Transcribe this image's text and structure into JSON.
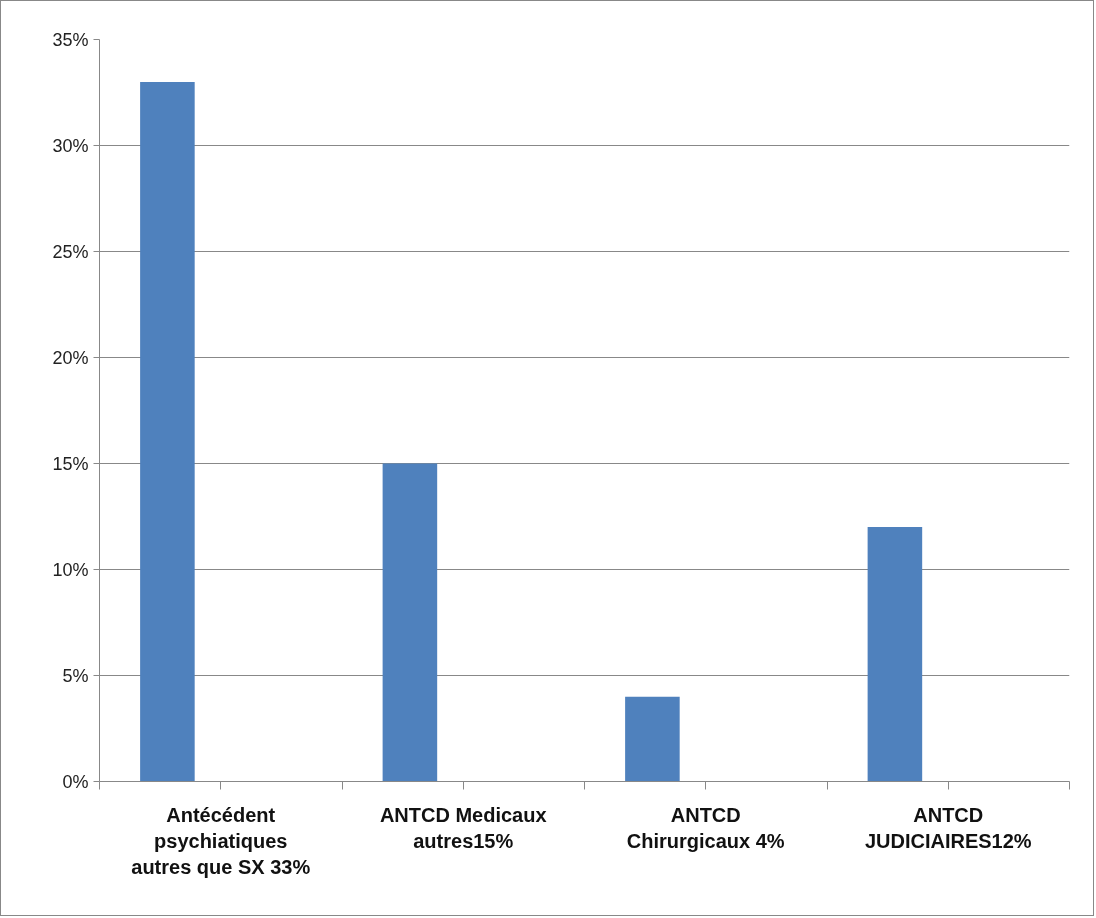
{
  "chart_data": {
    "type": "bar",
    "categories": [
      "Antécédent psychiatiques autres que SX 33%",
      "ANTCD Medicaux autres15%",
      "ANTCD Chirurgicaux 4%",
      "ANTCD JUDICIAIRES12%"
    ],
    "values": [
      33,
      15,
      4,
      12
    ],
    "color": "#4f81bd",
    "ylim": [
      0,
      35
    ],
    "yticks": [
      {
        "value": 0,
        "label": "0%"
      },
      {
        "value": 5,
        "label": "5%"
      },
      {
        "value": 10,
        "label": "10%"
      },
      {
        "value": 15,
        "label": "15%"
      },
      {
        "value": 20,
        "label": "20%"
      },
      {
        "value": 25,
        "label": "25%"
      },
      {
        "value": 30,
        "label": "30%"
      },
      {
        "value": 35,
        "label": "35%"
      }
    ],
    "grid": "y",
    "legend": false
  }
}
